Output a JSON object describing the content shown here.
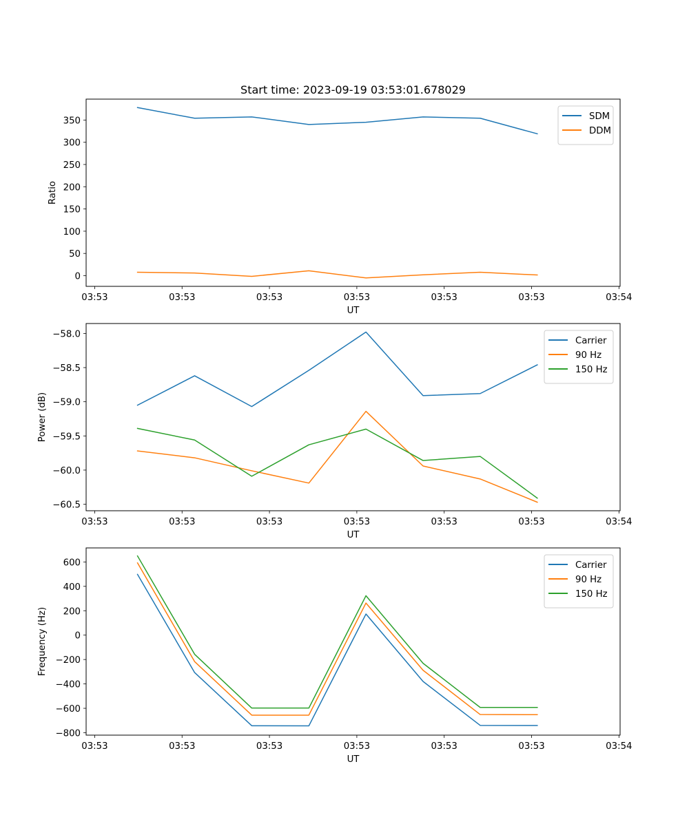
{
  "figure": {
    "title": "Start time: 2023-09-19 03:53:01.678029"
  },
  "chart_data": [
    {
      "type": "line",
      "title": "Start time: 2023-09-19 03:53:01.678029",
      "xlabel": "UT",
      "ylabel": "Ratio",
      "x_index": [
        0,
        1,
        2,
        3,
        4,
        5,
        6,
        7
      ],
      "x_ticks": [
        "03:53",
        "03:53",
        "03:53",
        "03:53",
        "03:53",
        "03:53",
        "03:54"
      ],
      "x_tick_positions": [
        -0.75,
        0.78,
        2.31,
        3.84,
        5.37,
        6.9,
        8.43
      ],
      "xlim": [
        -0.9,
        8.45
      ],
      "y_ticks": [
        0,
        50,
        100,
        150,
        200,
        250,
        300,
        350
      ],
      "ylim": [
        -24,
        397
      ],
      "grid": false,
      "legend": "top-right",
      "series": [
        {
          "name": "SDM",
          "color": "#1f77b4",
          "values": [
            378,
            354,
            357,
            340,
            345,
            357,
            354,
            319
          ]
        },
        {
          "name": "DDM",
          "color": "#ff7f0e",
          "values": [
            7.7,
            6,
            -1.5,
            11,
            -5,
            2,
            7.7,
            1.5
          ]
        }
      ]
    },
    {
      "type": "line",
      "title": "",
      "xlabel": "UT",
      "ylabel": "Power (dB)",
      "x_index": [
        0,
        1,
        2,
        3,
        4,
        5,
        6,
        7
      ],
      "x_ticks": [
        "03:53",
        "03:53",
        "03:53",
        "03:53",
        "03:53",
        "03:53",
        "03:54"
      ],
      "x_tick_positions": [
        -0.75,
        0.78,
        2.31,
        3.84,
        5.37,
        6.9,
        8.43
      ],
      "xlim": [
        -0.9,
        8.45
      ],
      "y_ticks": [
        -60.5,
        -60.0,
        -59.5,
        -59.0,
        -58.5,
        -58.0
      ],
      "y_tick_labels": [
        "−60.5",
        "−60.0",
        "−59.5",
        "−59.0",
        "−58.5",
        "−58.0"
      ],
      "ylim": [
        -60.595,
        -57.855
      ],
      "grid": false,
      "legend": "top-right",
      "series": [
        {
          "name": "Carrier",
          "color": "#1f77b4",
          "values": [
            -59.05,
            -58.62,
            -59.07,
            -58.54,
            -57.98,
            -58.91,
            -58.88,
            -58.46
          ]
        },
        {
          "name": "90 Hz",
          "color": "#ff7f0e",
          "values": [
            -59.72,
            -59.82,
            -60.01,
            -60.19,
            -59.14,
            -59.94,
            -60.13,
            -60.47
          ]
        },
        {
          "name": "150 Hz",
          "color": "#2ca02c",
          "values": [
            -59.39,
            -59.56,
            -60.09,
            -59.63,
            -59.4,
            -59.86,
            -59.8,
            -60.41
          ]
        }
      ]
    },
    {
      "type": "line",
      "title": "",
      "xlabel": "UT",
      "ylabel": "Frequency (Hz)",
      "x_index": [
        0,
        1,
        2,
        3,
        4,
        5,
        6,
        7
      ],
      "x_ticks": [
        "03:53",
        "03:53",
        "03:53",
        "03:53",
        "03:53",
        "03:53",
        "03:54"
      ],
      "x_tick_positions": [
        -0.75,
        0.78,
        2.31,
        3.84,
        5.37,
        6.9,
        8.43
      ],
      "xlim": [
        -0.9,
        8.45
      ],
      "y_ticks": [
        -800,
        -600,
        -400,
        -200,
        0,
        200,
        400,
        600
      ],
      "y_tick_labels": [
        "−800",
        "−600",
        "−400",
        "−200",
        "0",
        "200",
        "400",
        "600"
      ],
      "ylim": [
        -820,
        715
      ],
      "grid": false,
      "legend": "top-right",
      "series": [
        {
          "name": "Carrier",
          "color": "#1f77b4",
          "values": [
            498,
            -307,
            -743,
            -744,
            173,
            -380,
            -740,
            -741
          ]
        },
        {
          "name": "90 Hz",
          "color": "#ff7f0e",
          "values": [
            592,
            -217,
            -656,
            -656,
            263,
            -288,
            -651,
            -652
          ]
        },
        {
          "name": "150 Hz",
          "color": "#2ca02c",
          "values": [
            649,
            -157,
            -598,
            -598,
            323,
            -231,
            -593,
            -593
          ]
        }
      ]
    }
  ]
}
